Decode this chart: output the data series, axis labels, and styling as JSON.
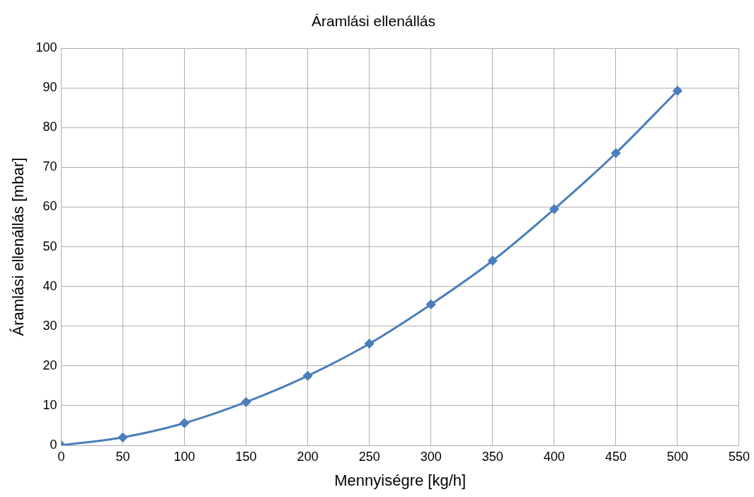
{
  "chart_data": {
    "type": "line",
    "title": "Áramlási ellenállás",
    "xlabel": "Mennyiségre [kg/h]",
    "ylabel": "Áramlási ellenállás [mbar]",
    "x": [
      0,
      50,
      100,
      150,
      200,
      250,
      300,
      350,
      400,
      450,
      500
    ],
    "series": [
      {
        "color": "#4a7ebb",
        "values": [
          0,
          2.0,
          5.6,
          10.9,
          17.5,
          25.6,
          35.5,
          46.5,
          59.5,
          73.6,
          89.3
        ]
      }
    ],
    "xlim": [
      0,
      550
    ],
    "xticks": [
      0,
      50,
      100,
      150,
      200,
      250,
      300,
      350,
      400,
      450,
      500,
      550
    ],
    "ylim": [
      0,
      100
    ],
    "yticks": [
      0,
      10,
      20,
      30,
      40,
      50,
      60,
      70,
      80,
      90,
      100
    ],
    "grid": true,
    "legend": false,
    "marker": "diamond",
    "line_style": "solid"
  }
}
